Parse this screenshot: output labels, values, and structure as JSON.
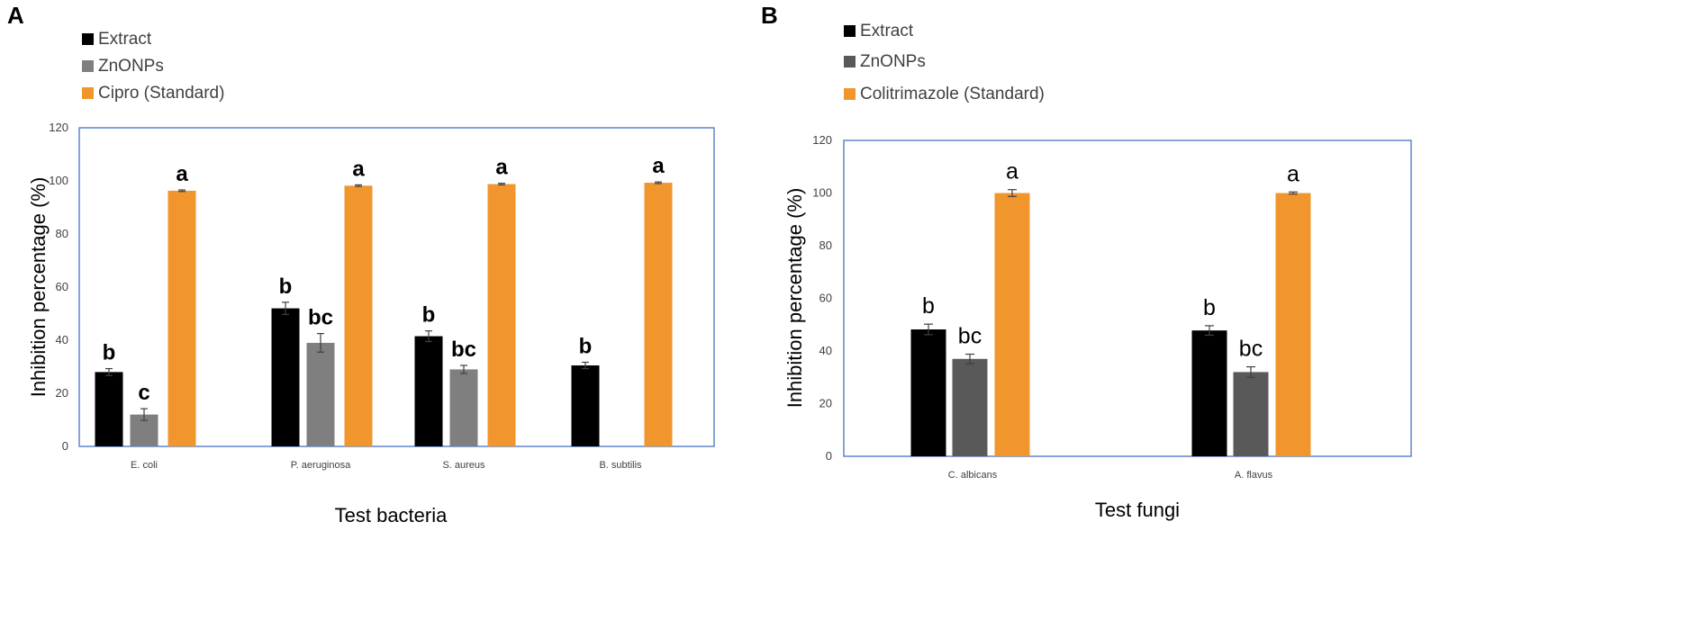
{
  "chart_data": [
    {
      "panel": "A",
      "type": "bar",
      "title": "",
      "xlabel": "Test bacteria",
      "ylabel": "Inhibition percentage (%)",
      "ylim": [
        0,
        120
      ],
      "yticks": [
        0,
        20,
        40,
        60,
        80,
        100,
        120
      ],
      "grid": false,
      "legend_position": "top-left",
      "categories": [
        "E. coli",
        "P. aeruginosa",
        "S. aureus",
        "B. subtilis"
      ],
      "series": [
        {
          "name": "Extract",
          "color": "#000000",
          "values": [
            28,
            52,
            41.5,
            30.5
          ],
          "errors": [
            1.3,
            2.3,
            2.0,
            1.2
          ],
          "labels": [
            "b",
            "b",
            "b",
            "b"
          ]
        },
        {
          "name": "ZnONPs",
          "color": "#7f7f7f",
          "values": [
            12,
            39,
            29,
            null
          ],
          "errors": [
            2.2,
            3.5,
            1.5,
            null
          ],
          "labels": [
            "c",
            "bc",
            "bc",
            ""
          ]
        },
        {
          "name": "Cipro  (Standard)",
          "color": "#f0962c",
          "values": [
            96.3,
            98.2,
            98.8,
            99.3
          ],
          "errors": [
            0.3,
            0.3,
            0.3,
            0.3
          ],
          "labels": [
            "a",
            "a",
            "a",
            "a"
          ]
        }
      ]
    },
    {
      "panel": "B",
      "type": "bar",
      "title": "",
      "xlabel": "Test fungi",
      "ylabel": "Inhibition percentage (%)",
      "ylim": [
        0,
        120
      ],
      "yticks": [
        0,
        20,
        40,
        60,
        80,
        100,
        120
      ],
      "grid": false,
      "legend_position": "top-left",
      "categories": [
        "C. albicans",
        "A. flavus"
      ],
      "series": [
        {
          "name": "Extract",
          "color": "#000000",
          "values": [
            48.2,
            47.8
          ],
          "errors": [
            2.0,
            1.8
          ],
          "labels": [
            "b",
            "b"
          ]
        },
        {
          "name": "ZnONPs",
          "color": "#595959",
          "values": [
            37,
            32
          ],
          "errors": [
            1.8,
            2.0
          ],
          "labels": [
            "bc",
            "bc"
          ]
        },
        {
          "name": "Colitrimazole (Standard)",
          "color": "#f0962c",
          "values": [
            100,
            100
          ],
          "errors": [
            1.3,
            0.4
          ],
          "labels": [
            "a",
            "a"
          ]
        }
      ]
    }
  ]
}
